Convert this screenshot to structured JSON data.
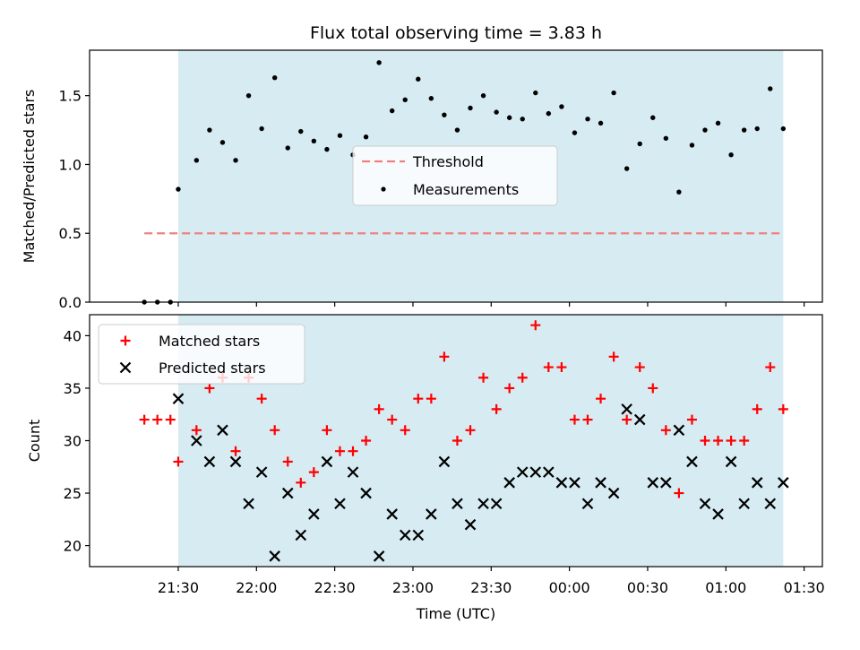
{
  "chart_data": [
    {
      "type": "scatter",
      "title": "Flux total observing time = 3.83 h",
      "xlabel": "",
      "ylabel": "Matched/Predicted stars",
      "ylim": [
        0,
        1.83
      ],
      "yticks": [
        "0.0",
        "0.5",
        "1.0",
        "1.5"
      ],
      "shaded_span": [
        "21:30",
        "01:22"
      ],
      "legend": {
        "location": "center",
        "entries": [
          "Threshold",
          "Measurements"
        ]
      },
      "threshold": {
        "name": "Threshold",
        "value": 0.5,
        "x_start": "21:17",
        "x_end": "01:22",
        "color": "#f08080"
      },
      "series": [
        {
          "name": "Measurements",
          "color": "#000000",
          "x": [
            "21:17",
            "21:22",
            "21:27",
            "21:30",
            "21:37",
            "21:42",
            "21:47",
            "21:52",
            "21:57",
            "22:02",
            "22:07",
            "22:12",
            "22:17",
            "22:22",
            "22:27",
            "22:32",
            "22:37",
            "22:42",
            "22:47",
            "22:52",
            "22:57",
            "23:02",
            "23:07",
            "23:12",
            "23:17",
            "23:22",
            "23:27",
            "23:32",
            "23:37",
            "23:42",
            "23:47",
            "23:52",
            "23:57",
            "00:02",
            "00:07",
            "00:12",
            "00:17",
            "00:22",
            "00:27",
            "00:32",
            "00:37",
            "00:42",
            "00:47",
            "00:52",
            "00:57",
            "01:02",
            "01:07",
            "01:12",
            "01:17",
            "01:22"
          ],
          "y": [
            0.0,
            0.0,
            0.0,
            0.82,
            1.03,
            1.25,
            1.16,
            1.03,
            1.5,
            1.26,
            1.63,
            1.12,
            1.24,
            1.17,
            1.11,
            1.21,
            1.07,
            1.2,
            1.74,
            1.39,
            1.47,
            1.62,
            1.48,
            1.36,
            1.25,
            1.41,
            1.5,
            1.38,
            1.34,
            1.33,
            1.52,
            1.37,
            1.42,
            1.23,
            1.33,
            1.3,
            1.52,
            0.97,
            1.15,
            1.34,
            1.19,
            0.8,
            1.14,
            1.25,
            1.3,
            1.07,
            1.25,
            1.26,
            1.55,
            1.26
          ]
        }
      ]
    },
    {
      "type": "scatter",
      "title": "",
      "xlabel": "Time (UTC)",
      "ylabel": "Count",
      "ylim": [
        18,
        42
      ],
      "yticks": [
        "20",
        "25",
        "30",
        "35",
        "40"
      ],
      "xticks": [
        "21:30",
        "22:00",
        "22:30",
        "23:00",
        "23:30",
        "00:00",
        "00:30",
        "01:00",
        "01:30"
      ],
      "shaded_span": [
        "21:30",
        "01:22"
      ],
      "legend": {
        "location": "upper left",
        "entries": [
          "Matched stars",
          "Predicted stars"
        ]
      },
      "series": [
        {
          "name": "Matched stars",
          "marker": "plus",
          "color": "#ff0000",
          "x": [
            "21:17",
            "21:22",
            "21:27",
            "21:30",
            "21:37",
            "21:42",
            "21:47",
            "21:52",
            "21:57",
            "22:02",
            "22:07",
            "22:12",
            "22:17",
            "22:22",
            "22:27",
            "22:32",
            "22:37",
            "22:42",
            "22:47",
            "22:52",
            "22:57",
            "23:02",
            "23:07",
            "23:12",
            "23:17",
            "23:22",
            "23:27",
            "23:32",
            "23:37",
            "23:42",
            "23:47",
            "23:52",
            "23:57",
            "00:02",
            "00:07",
            "00:12",
            "00:17",
            "00:22",
            "00:27",
            "00:32",
            "00:37",
            "00:42",
            "00:47",
            "00:52",
            "00:57",
            "01:02",
            "01:07",
            "01:12",
            "01:17",
            "01:22"
          ],
          "y": [
            32,
            32,
            32,
            28,
            31,
            35,
            36,
            29,
            36,
            34,
            31,
            28,
            26,
            27,
            31,
            29,
            29,
            30,
            33,
            32,
            31,
            34,
            34,
            38,
            30,
            31,
            36,
            33,
            35,
            36,
            41,
            37,
            37,
            32,
            32,
            34,
            38,
            32,
            37,
            35,
            31,
            25,
            32,
            30,
            30,
            30,
            30,
            33,
            37,
            33
          ]
        },
        {
          "name": "Predicted stars",
          "marker": "x",
          "color": "#000000",
          "x": [
            "21:30",
            "21:37",
            "21:42",
            "21:47",
            "21:52",
            "21:57",
            "22:02",
            "22:07",
            "22:12",
            "22:17",
            "22:22",
            "22:27",
            "22:32",
            "22:37",
            "22:42",
            "22:47",
            "22:52",
            "22:57",
            "23:02",
            "23:07",
            "23:12",
            "23:17",
            "23:22",
            "23:27",
            "23:32",
            "23:37",
            "23:42",
            "23:47",
            "23:52",
            "23:57",
            "00:02",
            "00:07",
            "00:12",
            "00:17",
            "00:22",
            "00:27",
            "00:32",
            "00:37",
            "00:42",
            "00:47",
            "00:52",
            "00:57",
            "01:02",
            "01:07",
            "01:12",
            "01:17",
            "01:22"
          ],
          "y": [
            34,
            30,
            28,
            31,
            28,
            24,
            27,
            19,
            25,
            21,
            23,
            28,
            24,
            27,
            25,
            19,
            23,
            21,
            21,
            23,
            28,
            24,
            22,
            24,
            24,
            26,
            27,
            27,
            27,
            26,
            26,
            24,
            26,
            25,
            33,
            32,
            26,
            26,
            31,
            28,
            24,
            23,
            28,
            24,
            26,
            24,
            26
          ]
        }
      ]
    }
  ]
}
